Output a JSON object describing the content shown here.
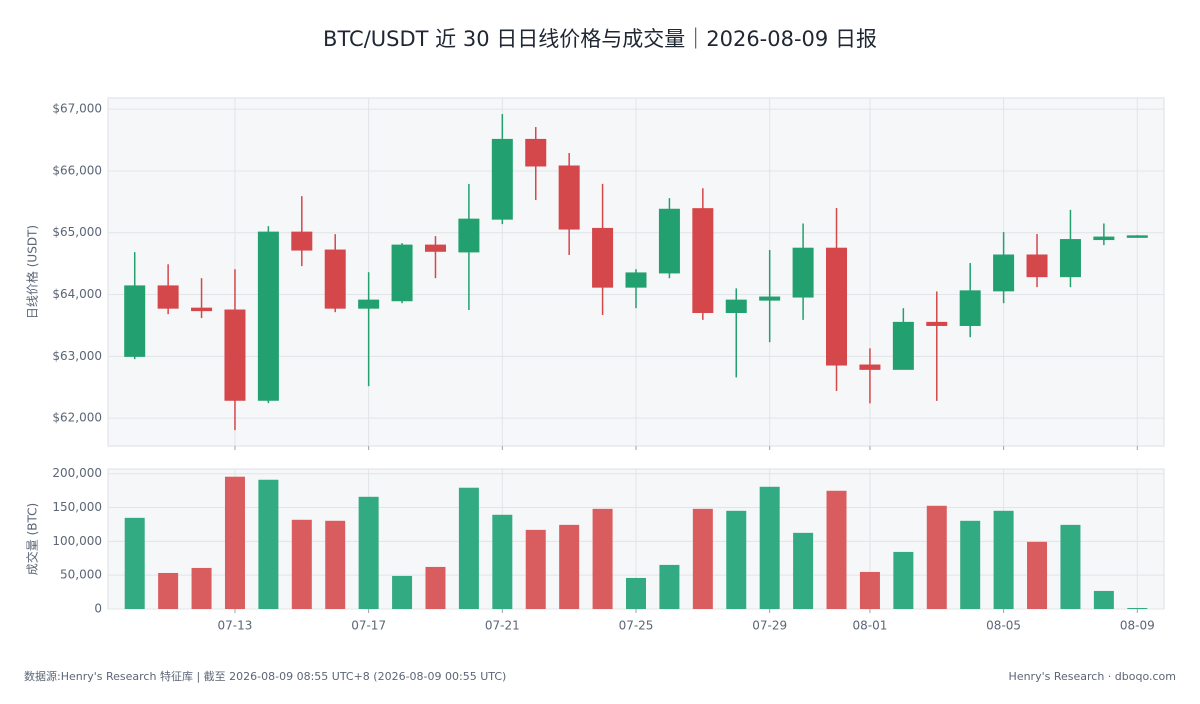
{
  "chart_data": [
    {
      "type": "candlestick",
      "title": "BTC/USDT 近 30 日日线价格与成交量｜2026-08-09 日报",
      "ylabel": "日线价格 (USDT)",
      "up_color": "#22a06f",
      "down_color": "#d4474a",
      "grid": true,
      "ylim": [
        61550,
        67180
      ],
      "yticks": [
        {
          "value": 62000,
          "label": "$62,000"
        },
        {
          "value": 63000,
          "label": "$63,000"
        },
        {
          "value": 64000,
          "label": "$64,000"
        },
        {
          "value": 65000,
          "label": "$65,000"
        },
        {
          "value": 66000,
          "label": "$66,000"
        },
        {
          "value": 67000,
          "label": "$67,000"
        }
      ],
      "open": [
        63000,
        64140,
        63780,
        63750,
        62290,
        65010,
        64720,
        63780,
        63900,
        64800,
        64690,
        65220,
        66510,
        66080,
        65070,
        64120,
        64350,
        65390,
        63710,
        63910,
        63960,
        64750,
        62860,
        62790,
        63550,
        63500,
        64060,
        64640,
        64290,
        64890,
        64930
      ],
      "high": [
        64686,
        64490,
        64265,
        64410,
        65107,
        65592,
        64977,
        64362,
        64832,
        64945,
        65790,
        66920,
        66710,
        66290,
        65790,
        64410,
        65560,
        65720,
        64100,
        64720,
        65150,
        65400,
        63130,
        63780,
        64050,
        64510,
        65010,
        64980,
        65370,
        65150,
        64960
      ],
      "low": [
        62955,
        63683,
        63620,
        61806,
        62243,
        64460,
        63715,
        62518,
        63860,
        64265,
        63750,
        65140,
        65530,
        64640,
        63670,
        63780,
        64265,
        63590,
        62660,
        63230,
        63590,
        62440,
        62240,
        62790,
        62280,
        63310,
        63860,
        64120,
        64120,
        64800,
        64920
      ],
      "close": [
        64140,
        63780,
        63740,
        62290,
        65010,
        64720,
        63780,
        63910,
        64800,
        64700,
        65220,
        66510,
        66080,
        65060,
        64120,
        64350,
        65380,
        63710,
        63910,
        63960,
        64750,
        62860,
        62790,
        63550,
        63500,
        64060,
        64640,
        64290,
        64890,
        64930,
        64950
      ]
    },
    {
      "type": "bar",
      "ylabel": "成交量 (BTC)",
      "grid": true,
      "categories": [
        null,
        null,
        null,
        "07-13",
        null,
        null,
        null,
        "07-17",
        null,
        null,
        null,
        "07-21",
        null,
        null,
        null,
        "07-25",
        null,
        null,
        null,
        "07-29",
        null,
        null,
        "08-01",
        null,
        null,
        null,
        "08-05",
        null,
        null,
        null,
        "08-09"
      ],
      "values": [
        134800,
        53300,
        60700,
        195600,
        191100,
        131900,
        130400,
        165900,
        48900,
        62200,
        179300,
        139300,
        117000,
        124400,
        148100,
        45900,
        65200,
        148100,
        145200,
        180700,
        112600,
        174800,
        54800,
        84400,
        152600,
        130400,
        145200,
        99300,
        124400,
        26700,
        1500
      ],
      "up_color": "#33ab82",
      "down_color": "#d95c5e",
      "ylim": [
        0,
        207000
      ],
      "yticks": [
        0,
        {
          "value": 50000,
          "label": "50,000"
        },
        {
          "value": 100000,
          "label": "100,000"
        },
        {
          "value": 150000,
          "label": "150,000"
        },
        {
          "value": 200000,
          "label": "200,000"
        }
      ]
    }
  ],
  "footer": {
    "source": "数据源:Henry's Research 特征库 | 截至 2026-08-09 08:55 UTC+8 (2026-08-09 00:55 UTC)",
    "brand": "Henry's Research · dboqo.com"
  }
}
